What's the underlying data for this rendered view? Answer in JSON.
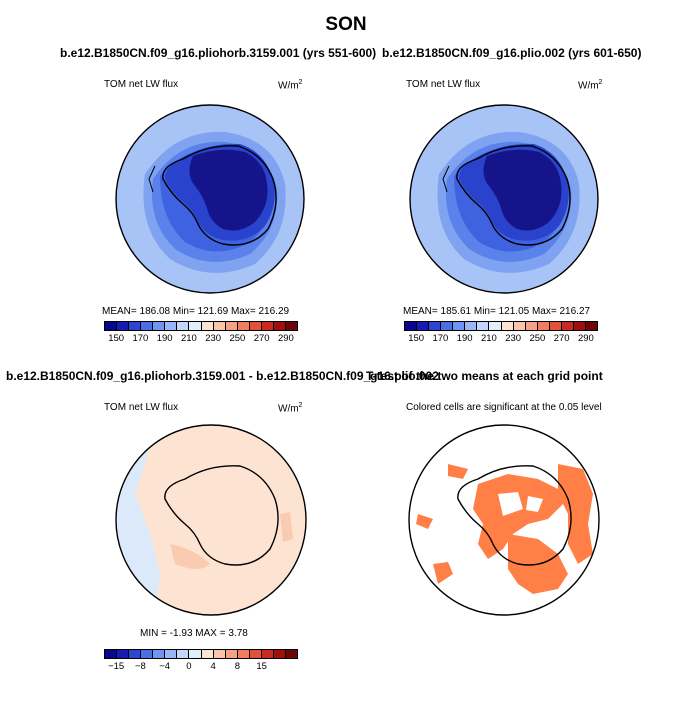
{
  "figure": {
    "title": "SON"
  },
  "panels": [
    {
      "title": "b.e12.B1850CN.f09_g16.pliohorb.3159.001 (yrs 551-600)",
      "left_label": "TOM net LW flux",
      "units": "W/m",
      "stats": "MEAN=  186.08   Min=  121.69   Max=  216.29"
    },
    {
      "title": "b.e12.B1850CN.f09_g16.plio.002 (yrs 601-650)",
      "left_label": "TOM net LW flux",
      "units": "W/m",
      "stats": "MEAN=  185.61   Min=  121.05   Max=  216.27"
    },
    {
      "title": "b.e12.B1850CN.f09_g16.pliohorb.3159.001 - b.e12.B1850CN.f09_g16.plio.002",
      "left_label": "TOM net LW flux",
      "units": "W/m",
      "stats": "MIN =   -1.93  MAX =     3.78"
    },
    {
      "title": "T-test of the two means at each grid point",
      "subtitle": "Colored cells are significant at the 0.05 level"
    }
  ],
  "units_exponent": "2",
  "colorbar_abs": {
    "colors": [
      "#08088e",
      "#1919b4",
      "#2c45d2",
      "#4a6ee6",
      "#6f94f2",
      "#98b6f8",
      "#c2d6fb",
      "#e3eefd",
      "#fde4d2",
      "#fcc5aa",
      "#f8a285",
      "#f27e60",
      "#e4513a",
      "#c9291e",
      "#a00e0e",
      "#6d0606"
    ],
    "ticks": [
      "150",
      "170",
      "190",
      "210",
      "230",
      "250",
      "270",
      "290"
    ]
  },
  "colorbar_diff": {
    "colors": [
      "#08088e",
      "#1919b4",
      "#2c45d2",
      "#4a6ee6",
      "#6f94f2",
      "#98b6f8",
      "#c2d6fb",
      "#e3eefd",
      "#fde4d2",
      "#fcc5aa",
      "#f8a285",
      "#f27e60",
      "#e4513a",
      "#c9291e",
      "#a00e0e",
      "#6d0606"
    ],
    "ticks": [
      "−15",
      "−8",
      "−4",
      "0",
      "4",
      "8",
      "15"
    ]
  },
  "map_colors": {
    "ring_outer": "#a8c4f6",
    "ring_2": "#7fa3f0",
    "ring_3": "#5a82ea",
    "ring_4": "#3f63e0",
    "ring_5": "#2a43cc",
    "interior": "#15148a",
    "diff_background": "#fde4d2",
    "diff_negative": "#dbe9fb",
    "diff_positive_patch": "#f9cbb0",
    "significant": "#ff7f47"
  }
}
